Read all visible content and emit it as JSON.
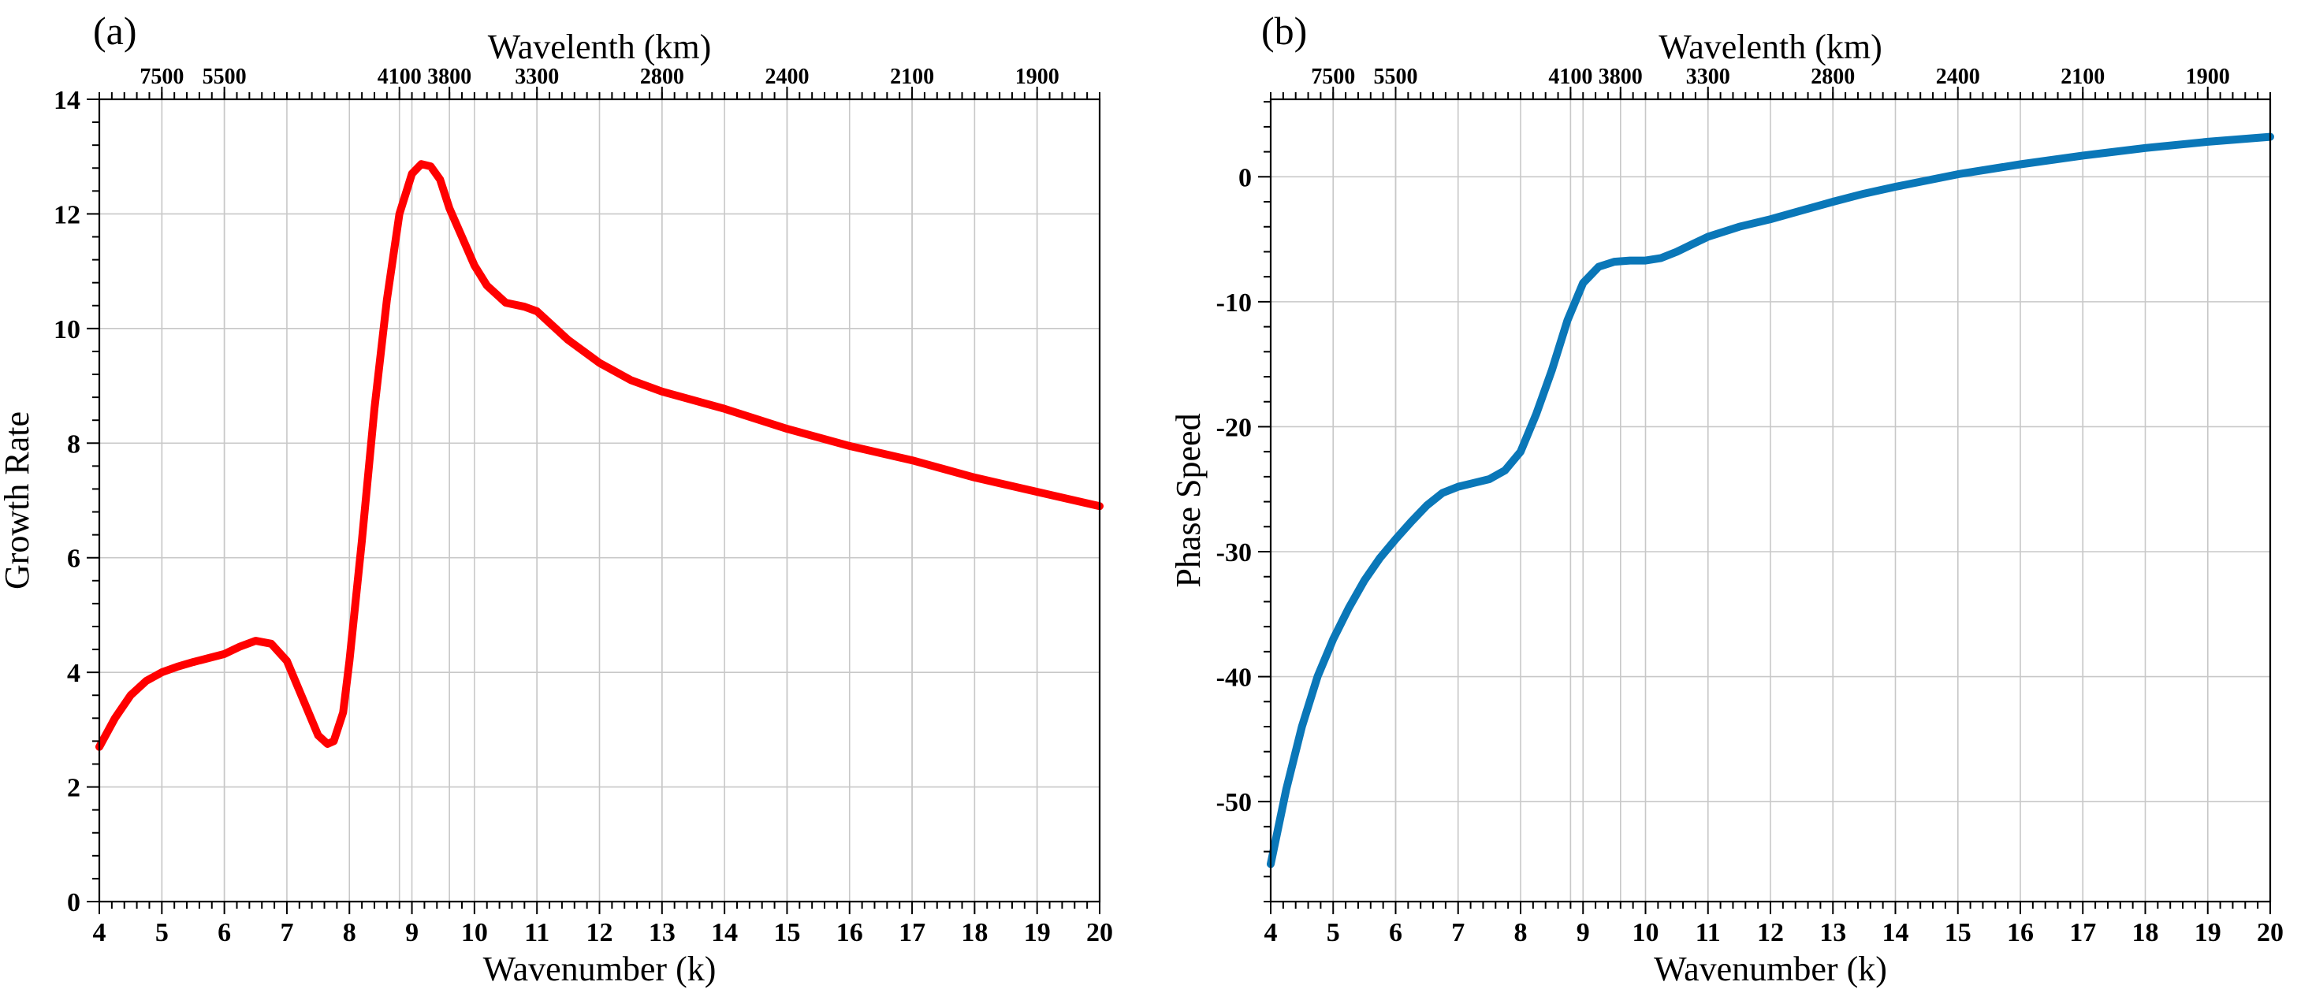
{
  "chart_data": [
    {
      "panel": "(a)",
      "type": "line",
      "xlabel": "Wavenumber (k)",
      "ylabel": "Growth Rate",
      "top_axis_label": "Wavelenth (km)",
      "xlim": [
        4,
        20
      ],
      "ylim": [
        0,
        14
      ],
      "xticks": [
        4,
        5,
        6,
        7,
        8,
        9,
        10,
        11,
        12,
        13,
        14,
        15,
        16,
        17,
        18,
        19,
        20
      ],
      "yticks": [
        0,
        2,
        4,
        6,
        8,
        10,
        12,
        14
      ],
      "top_ticks": [
        {
          "x": 5.0,
          "label": "7500"
        },
        {
          "x": 6.0,
          "label": "5500"
        },
        {
          "x": 8.8,
          "label": "4100"
        },
        {
          "x": 9.6,
          "label": "3800"
        },
        {
          "x": 11.0,
          "label": "3300"
        },
        {
          "x": 13.0,
          "label": "2800"
        },
        {
          "x": 15.0,
          "label": "2400"
        },
        {
          "x": 17.0,
          "label": "2100"
        },
        {
          "x": 19.0,
          "label": "1900"
        }
      ],
      "grid": true,
      "line_color": "#ff0000",
      "series": [
        {
          "name": "Growth Rate",
          "x": [
            4.0,
            4.25,
            4.5,
            4.75,
            5.0,
            5.25,
            5.5,
            5.75,
            6.0,
            6.25,
            6.5,
            6.75,
            7.0,
            7.25,
            7.5,
            7.65,
            7.75,
            7.9,
            8.0,
            8.2,
            8.4,
            8.6,
            8.8,
            9.0,
            9.15,
            9.3,
            9.45,
            9.6,
            9.8,
            10.0,
            10.2,
            10.5,
            10.8,
            11.0,
            11.2,
            11.5,
            12.0,
            12.5,
            13.0,
            14.0,
            15.0,
            16.0,
            17.0,
            18.0,
            19.0,
            20.0
          ],
          "y": [
            2.7,
            3.2,
            3.6,
            3.85,
            4.0,
            4.1,
            4.18,
            4.25,
            4.32,
            4.45,
            4.55,
            4.5,
            4.2,
            3.55,
            2.9,
            2.75,
            2.8,
            3.3,
            4.2,
            6.3,
            8.6,
            10.5,
            12.0,
            12.7,
            12.87,
            12.83,
            12.6,
            12.1,
            11.6,
            11.1,
            10.75,
            10.45,
            10.38,
            10.3,
            10.1,
            9.8,
            9.4,
            9.1,
            8.9,
            8.6,
            8.25,
            7.95,
            7.7,
            7.4,
            7.15,
            6.9
          ]
        }
      ]
    },
    {
      "panel": "(b)",
      "type": "line",
      "xlabel": "Wavenumber (k)",
      "ylabel": "Phase Speed",
      "top_axis_label": "Wavelenth (km)",
      "xlim": [
        4,
        20
      ],
      "ylim": [
        -58,
        6.2
      ],
      "xticks": [
        4,
        5,
        6,
        7,
        8,
        9,
        10,
        11,
        12,
        13,
        14,
        15,
        16,
        17,
        18,
        19,
        20
      ],
      "yticks": [
        -50,
        -40,
        -30,
        -20,
        -10,
        0
      ],
      "top_ticks": [
        {
          "x": 5.0,
          "label": "7500"
        },
        {
          "x": 6.0,
          "label": "5500"
        },
        {
          "x": 8.8,
          "label": "4100"
        },
        {
          "x": 9.6,
          "label": "3800"
        },
        {
          "x": 11.0,
          "label": "3300"
        },
        {
          "x": 13.0,
          "label": "2800"
        },
        {
          "x": 15.0,
          "label": "2400"
        },
        {
          "x": 17.0,
          "label": "2100"
        },
        {
          "x": 19.0,
          "label": "1900"
        }
      ],
      "grid": true,
      "line_color": "#0a77b8",
      "series": [
        {
          "name": "Phase Speed",
          "x": [
            4.0,
            4.25,
            4.5,
            4.75,
            5.0,
            5.25,
            5.5,
            5.75,
            6.0,
            6.25,
            6.5,
            6.75,
            7.0,
            7.25,
            7.5,
            7.75,
            8.0,
            8.25,
            8.5,
            8.75,
            9.0,
            9.25,
            9.5,
            9.75,
            10.0,
            10.25,
            10.5,
            10.75,
            11.0,
            11.5,
            12.0,
            12.5,
            13.0,
            13.5,
            14.0,
            15.0,
            16.0,
            17.0,
            18.0,
            19.0,
            20.0
          ],
          "y": [
            -55.0,
            -49.0,
            -44.0,
            -40.0,
            -37.0,
            -34.5,
            -32.3,
            -30.5,
            -29.0,
            -27.6,
            -26.3,
            -25.3,
            -24.8,
            -24.5,
            -24.2,
            -23.5,
            -22.0,
            -19.0,
            -15.5,
            -11.5,
            -8.5,
            -7.2,
            -6.8,
            -6.7,
            -6.7,
            -6.5,
            -6.0,
            -5.4,
            -4.8,
            -4.0,
            -3.4,
            -2.7,
            -2.0,
            -1.35,
            -0.8,
            0.2,
            1.0,
            1.7,
            2.3,
            2.8,
            3.2
          ]
        }
      ]
    }
  ]
}
